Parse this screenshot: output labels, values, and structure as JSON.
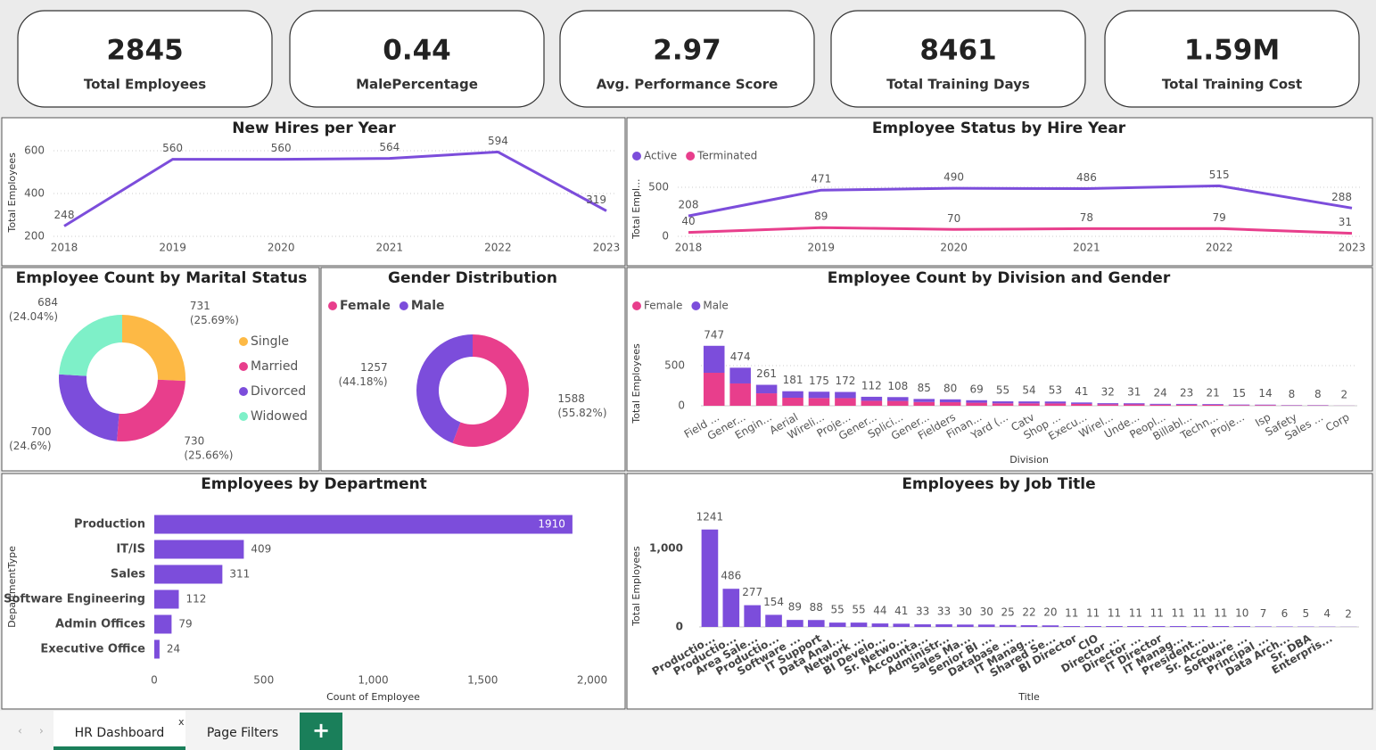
{
  "cards": [
    {
      "value": "2845",
      "label": "Total Employees"
    },
    {
      "value": "0.44",
      "label": "MalePercentage"
    },
    {
      "value": "2.97",
      "label": "Avg. Performance Score"
    },
    {
      "value": "8461",
      "label": "Total Training Days"
    },
    {
      "value": "1.59M",
      "label": "Total Training Cost"
    }
  ],
  "tabs": [
    "HR Dashboard",
    "Page Filters"
  ],
  "chart_data": [
    {
      "type": "line",
      "title": "New Hires per Year",
      "y_label": "Total Employees",
      "categories": [
        "2018",
        "2019",
        "2020",
        "2021",
        "2022",
        "2023"
      ],
      "values": [
        248,
        560,
        560,
        564,
        594,
        319
      ],
      "color": "#7c4ddb",
      "ylim": [
        200,
        610
      ],
      "yticks": [
        200,
        400,
        600
      ],
      "grid": true
    },
    {
      "type": "line",
      "title": "Employee Status by Hire Year",
      "y_label": "Total Empl...",
      "categories": [
        "2018",
        "2019",
        "2020",
        "2021",
        "2022",
        "2023"
      ],
      "series": [
        {
          "name": "Active",
          "color": "#7c4ddb",
          "values": [
            208,
            471,
            490,
            486,
            515,
            288
          ]
        },
        {
          "name": "Terminated",
          "color": "#e83e8c",
          "values": [
            40,
            89,
            70,
            78,
            79,
            31
          ]
        }
      ],
      "ylim": [
        0,
        560
      ],
      "yticks": [
        0,
        500
      ],
      "grid": true,
      "legend": "top-left"
    },
    {
      "type": "pie",
      "title": "Employee Count by Marital Status",
      "categories": [
        "Single",
        "Married",
        "Divorced",
        "Widowed"
      ],
      "values": [
        731,
        730,
        700,
        684
      ],
      "percent_labels": [
        "(25.69%)",
        "(25.66%)",
        "(24.6%)",
        "(24.04%)"
      ],
      "colors": [
        "#fdb945",
        "#e83e8c",
        "#7c4ddb",
        "#7ef0c8"
      ],
      "donut": true,
      "legend": "right"
    },
    {
      "type": "pie",
      "title": "Gender Distribution",
      "categories": [
        "Female",
        "Male"
      ],
      "values": [
        1588,
        1257
      ],
      "percent_labels": [
        "(55.82%)",
        "(44.18%)"
      ],
      "colors": [
        "#e83e8c",
        "#7c4ddb"
      ],
      "donut": true,
      "legend": "top-left"
    },
    {
      "type": "bar",
      "stacked": true,
      "title": "Employee Count by Division and Gender",
      "x_label": "Division",
      "y_label": "Total Employees",
      "categories": [
        "Field ...",
        "Gener...",
        "Engin...",
        "Aerial",
        "Wireli...",
        "Proje...",
        "Gener...",
        "Splici...",
        "Gener...",
        "Fielders",
        "Finan...",
        "Yard (...",
        "Catv",
        "Shop ...",
        "Execu...",
        "Wirel...",
        "Unde...",
        "Peopl...",
        "Billabl...",
        "Techn...",
        "Proje...",
        "Isp",
        "Safety",
        "Sales ...",
        "Corp"
      ],
      "series": [
        {
          "name": "Female",
          "color": "#e83e8c",
          "values": [
            411,
            278,
            155,
            100,
            96,
            95,
            62,
            60,
            47,
            44,
            38,
            30,
            30,
            29,
            23,
            18,
            17,
            13,
            13,
            12,
            8,
            8,
            4,
            4,
            1
          ]
        },
        {
          "name": "Male",
          "color": "#7c4ddb",
          "values": [
            336,
            196,
            106,
            81,
            79,
            77,
            50,
            48,
            38,
            36,
            31,
            25,
            24,
            24,
            18,
            14,
            14,
            11,
            10,
            9,
            7,
            6,
            4,
            4,
            1
          ]
        }
      ],
      "totals": [
        747,
        474,
        261,
        181,
        175,
        172,
        112,
        108,
        85,
        80,
        69,
        55,
        54,
        53,
        41,
        32,
        31,
        24,
        23,
        21,
        15,
        14,
        8,
        8,
        2
      ],
      "ylim": [
        0,
        780
      ],
      "yticks": [
        0,
        500
      ],
      "grid": true,
      "legend": "top-left"
    },
    {
      "type": "bar",
      "orientation": "horizontal",
      "title": "Employees by Department",
      "x_label": "Count of Employee",
      "y_label": "DepartmentType",
      "categories": [
        "Production",
        "IT/IS",
        "Sales",
        "Software Engineering",
        "Admin Offices",
        "Executive Office"
      ],
      "values": [
        1910,
        409,
        311,
        112,
        79,
        24
      ],
      "color": "#7c4ddb",
      "xlim": [
        0,
        2000
      ],
      "xticks": [
        0,
        500,
        {
          "value": 1000,
          "label": "1,000"
        },
        {
          "value": 1500,
          "label": "1,500"
        },
        {
          "value": 2000,
          "label": "2,000"
        }
      ],
      "grid": false
    },
    {
      "type": "bar",
      "title": "Employees by Job Title",
      "x_label": "Title",
      "y_label": "Total Employees",
      "categories": [
        "Productio...",
        "Productio...",
        "Area Sale...",
        "Productio...",
        "Software ...",
        "IT Support",
        "Data Anal...",
        "Network ...",
        "BI Develo...",
        "Sr. Netwo...",
        "Accounta...",
        "Administr...",
        "Sales Ma...",
        "Senior BI ...",
        "Database ...",
        "IT Manag...",
        "Shared Se...",
        "BI Director",
        "CIO",
        "Director ...",
        "Director ...",
        "IT Director",
        "IT Manag...",
        "President...",
        "Sr. Accou...",
        "Software ...",
        "Principal ...",
        "Data Arch...",
        "Sr. DBA",
        "Enterpris...",
        null
      ],
      "values": [
        1241,
        486,
        277,
        154,
        89,
        88,
        55,
        55,
        44,
        41,
        33,
        33,
        30,
        30,
        25,
        22,
        20,
        11,
        11,
        11,
        11,
        11,
        11,
        11,
        11,
        10,
        7,
        6,
        5,
        4,
        2
      ],
      "color": "#7c4ddb",
      "ylim": [
        0,
        1270
      ],
      "yticks": [
        0,
        {
          "value": 1000,
          "label": "1,000"
        }
      ],
      "grid": false
    }
  ]
}
